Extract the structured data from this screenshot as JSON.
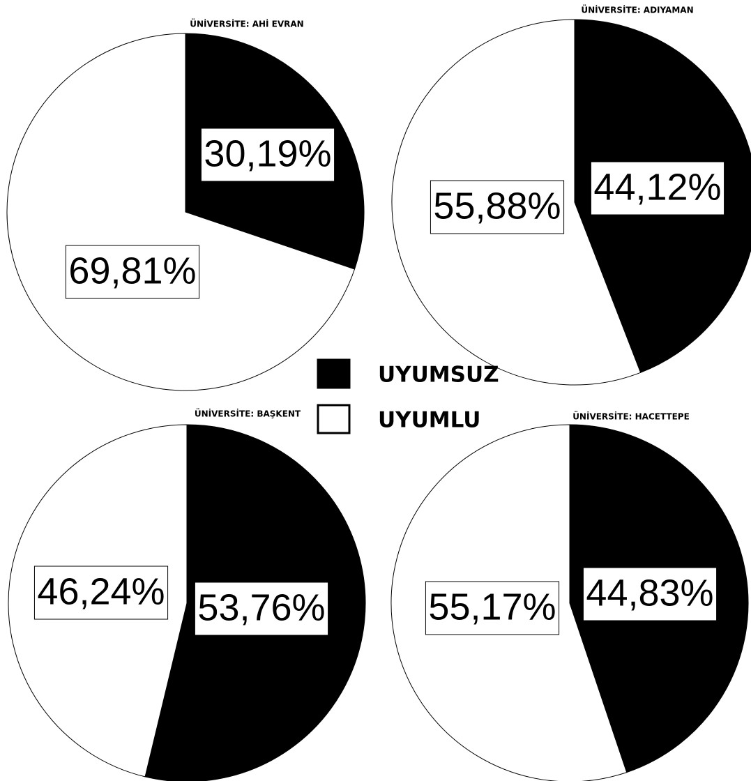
{
  "chart_data": [
    {
      "type": "pie",
      "title": "ÜNİVERSİTE: AHİ EVRAN",
      "categories": [
        "UYUMSUZ",
        "UYUMLU"
      ],
      "values": [
        30.19,
        69.81
      ],
      "value_labels": [
        "30,19%",
        "69,81%"
      ],
      "colors": [
        "#000000",
        "#ffffff"
      ]
    },
    {
      "type": "pie",
      "title": "ÜNİVERSİTE: ADIYAMAN",
      "categories": [
        "UYUMSUZ",
        "UYUMLU"
      ],
      "values": [
        44.12,
        55.88
      ],
      "value_labels": [
        "44,12%",
        "55,88%"
      ],
      "colors": [
        "#000000",
        "#ffffff"
      ]
    },
    {
      "type": "pie",
      "title": "ÜNİVERSİTE: BAŞKENT",
      "categories": [
        "UYUMSUZ",
        "UYUMLU"
      ],
      "values": [
        53.76,
        46.24
      ],
      "value_labels": [
        "53,76%",
        "46,24%"
      ],
      "colors": [
        "#000000",
        "#ffffff"
      ]
    },
    {
      "type": "pie",
      "title": "ÜNİVERSİTE: HACETTEPE",
      "categories": [
        "UYUMSUZ",
        "UYUMLU"
      ],
      "values": [
        44.83,
        55.17
      ],
      "value_labels": [
        "44,83%",
        "55,17%"
      ],
      "colors": [
        "#000000",
        "#ffffff"
      ]
    }
  ]
}
